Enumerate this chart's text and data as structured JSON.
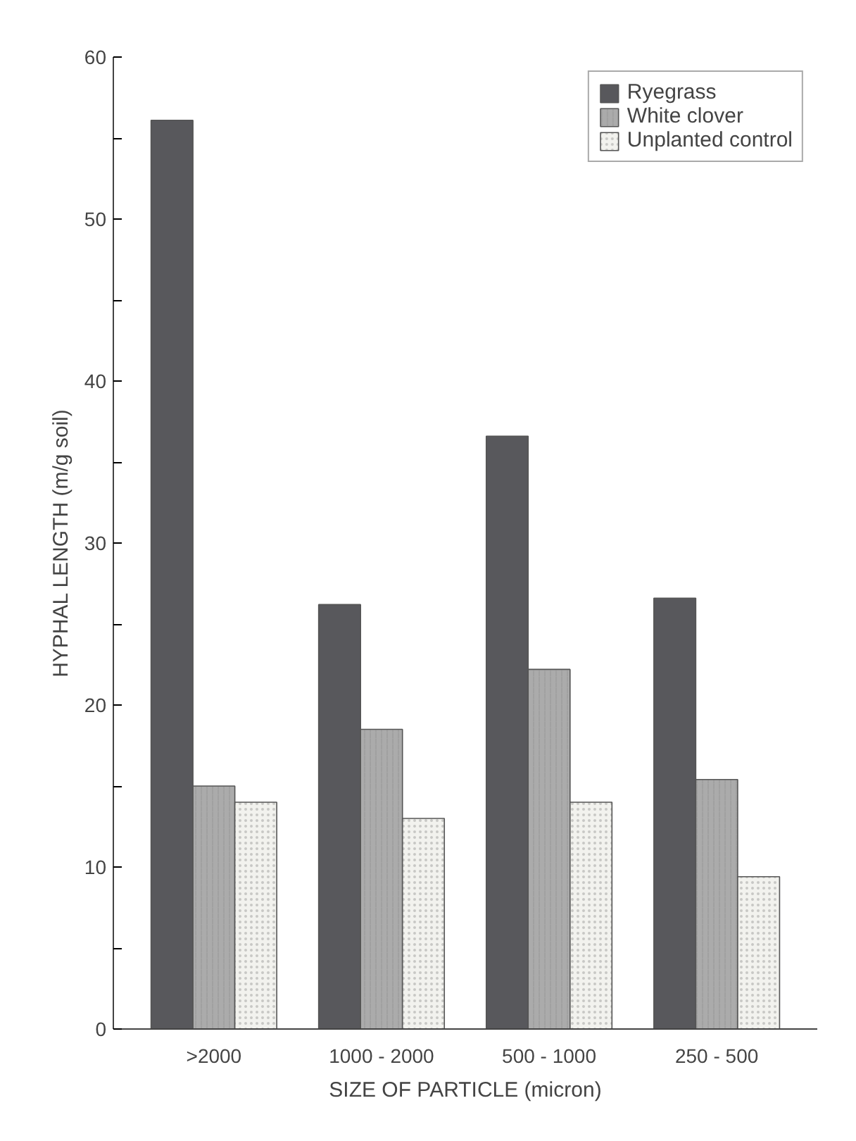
{
  "chart_data": {
    "type": "bar",
    "xlabel": "SIZE OF PARTICLE (micron)",
    "ylabel": "HYPHAL LENGTH (m/g soil)",
    "categories": [
      ">2000",
      "1000 - 2000",
      "500 - 1000",
      "250 - 500"
    ],
    "series": [
      {
        "name": "Ryegrass",
        "color": "#58585c",
        "values": [
          56.1,
          26.2,
          36.6,
          26.6
        ]
      },
      {
        "name": "White clover",
        "color": "#ababab",
        "values": [
          15.0,
          18.5,
          22.2,
          15.4
        ]
      },
      {
        "name": "Unplanted control",
        "color": "#f2f2ee",
        "values": [
          14.0,
          13.0,
          14.0,
          9.4
        ]
      }
    ],
    "ylim": [
      0,
      60
    ],
    "yticks": [
      0,
      {
        "value": 5,
        "label": null
      },
      10,
      {
        "value": 15,
        "label": null
      },
      20,
      {
        "value": 25,
        "label": null
      },
      30,
      {
        "value": 35,
        "label": null
      },
      40,
      {
        "value": 45,
        "label": null
      },
      50,
      {
        "value": 55,
        "label": null
      },
      60
    ],
    "grid": false,
    "legend": "top right"
  }
}
